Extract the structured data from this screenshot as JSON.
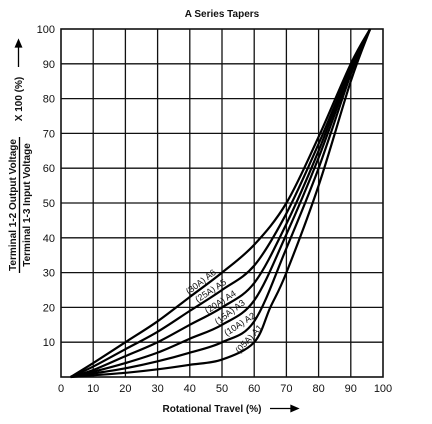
{
  "chart_data": {
    "type": "line",
    "title": "A Series Tapers",
    "xlabel": "Rotational Travel (%)",
    "ylabel": {
      "numerator": "Terminal 1-2 Output Voltage",
      "denominator": "Terminal 1-3 Input Voltage",
      "multiplier": "X 100 (%)"
    },
    "xlim": [
      0,
      100
    ],
    "ylim": [
      0,
      100
    ],
    "x_ticks": [
      "0",
      "10",
      "20",
      "30",
      "40",
      "50",
      "60",
      "70",
      "80",
      "90",
      "100"
    ],
    "y_ticks": [
      "10",
      "20",
      "30",
      "40",
      "50",
      "60",
      "70",
      "80",
      "90",
      "100"
    ],
    "grid": true,
    "legend": "inline labels on curves",
    "series": [
      {
        "name": "(30A) A6",
        "x": [
          3,
          10,
          20,
          30,
          40,
          50,
          60,
          70,
          80,
          90,
          96
        ],
        "y": [
          0,
          4,
          10,
          16,
          23,
          30,
          38,
          50,
          69,
          90,
          100
        ]
      },
      {
        "name": "(25A) A5",
        "x": [
          3,
          10,
          20,
          30,
          40,
          50,
          60,
          70,
          80,
          90,
          96
        ],
        "y": [
          0,
          3,
          8,
          13,
          19,
          25,
          32,
          47,
          67,
          89,
          100
        ]
      },
      {
        "name": "(20A) A4",
        "x": [
          3,
          10,
          20,
          30,
          40,
          50,
          60,
          70,
          80,
          90,
          96
        ],
        "y": [
          0,
          2,
          6,
          10,
          15,
          20,
          27,
          44,
          65,
          89,
          100
        ]
      },
      {
        "name": "(15A) A3",
        "x": [
          3,
          10,
          20,
          30,
          40,
          50,
          60,
          70,
          80,
          90,
          96
        ],
        "y": [
          0,
          1.5,
          4,
          7,
          11,
          15,
          22,
          41,
          63,
          88,
          100
        ]
      },
      {
        "name": "(10A) A2",
        "x": [
          3,
          10,
          20,
          30,
          40,
          50,
          60,
          70,
          80,
          90,
          96
        ],
        "y": [
          0,
          1,
          2.5,
          4.5,
          7,
          10,
          16,
          37,
          60,
          87,
          100
        ]
      },
      {
        "name": "(05A) A1",
        "x": [
          3,
          10,
          20,
          30,
          40,
          50,
          60,
          65,
          70,
          80,
          90,
          96
        ],
        "y": [
          0,
          0.5,
          1.2,
          2.2,
          3.5,
          5,
          10,
          20,
          30,
          55,
          85,
          100
        ]
      }
    ]
  }
}
